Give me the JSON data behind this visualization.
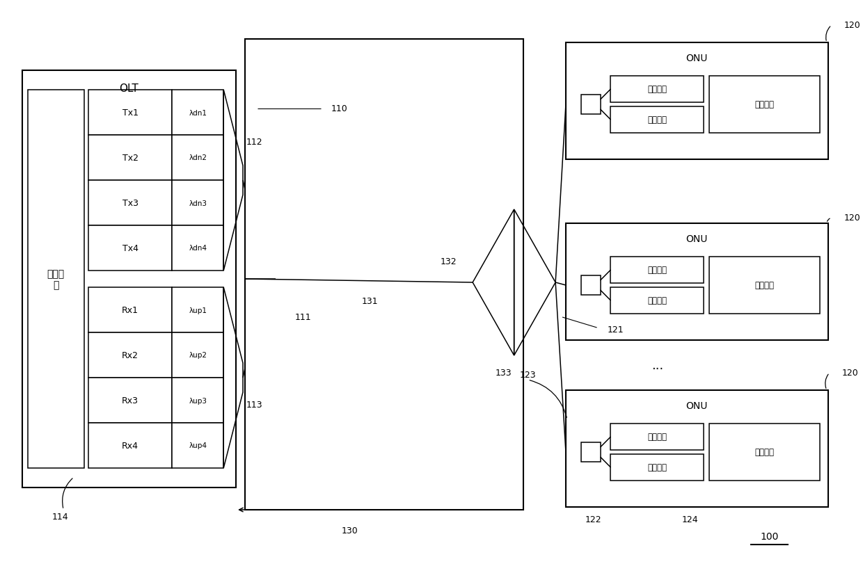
{
  "bg_color": "#ffffff",
  "olt_label": "OLT",
  "proc_label_cn": "处理模\n块",
  "tx_labels": [
    "Tx1",
    "Tx2",
    "Tx3",
    "Tx4"
  ],
  "rx_labels": [
    "Rx1",
    "Rx2",
    "Rx3",
    "Rx4"
  ],
  "dn_labels": [
    "λdn1",
    "λdn2",
    "λdn3",
    "λdn4"
  ],
  "up_labels": [
    "λup1",
    "λup2",
    "λup3",
    "λup4"
  ],
  "onu_label": "ONU",
  "guangfa": "光发射器",
  "guangjie": "光接收器",
  "chuli": "处理模块",
  "ref_100": "100",
  "ref_110": "110",
  "ref_111": "111",
  "ref_112": "112",
  "ref_113": "113",
  "ref_114": "114",
  "ref_120": "120",
  "ref_121": "121",
  "ref_122": "122",
  "ref_123": "123",
  "ref_124": "124",
  "ref_130": "130",
  "ref_131": "131",
  "ref_132": "132",
  "ref_133": "133",
  "ellipsis": "..."
}
